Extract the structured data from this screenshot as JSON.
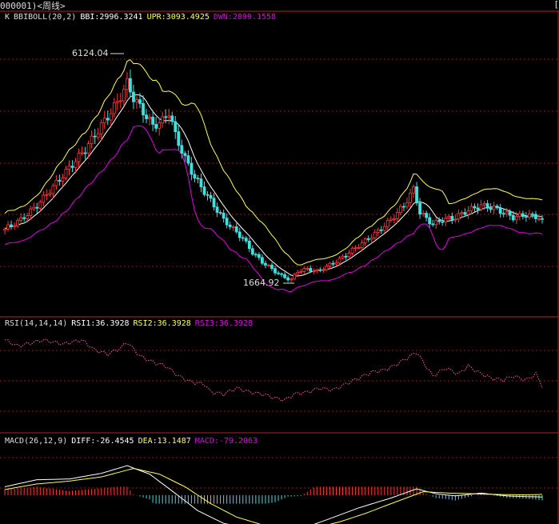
{
  "header": {
    "title": "000001)<周线>",
    "right_mark": "["
  },
  "colors": {
    "up": "#ff3a3a",
    "down": "#3fe0e0",
    "ma": "#ffffff",
    "upper": "#ffff55",
    "lower": "#e000e0",
    "rsi": "#ff55aa",
    "grid": "#8a1a1a",
    "border": "#b02020",
    "bar_up": "#ff3a3a",
    "bar_down": "#3fe0e0"
  },
  "main_panel": {
    "legend": {
      "k": "K",
      "indicator": "BBIBOLL(20,2)",
      "bbi": "BBI:2996.3241",
      "upr": "UPR:3093.4925",
      "dwn": "DWN:2899.1558"
    },
    "high_label": "6124.04",
    "low_label": "1664.92"
  },
  "rsi_panel": {
    "legend": {
      "name": "RSI(14,14,14)",
      "rsi1": "RSI1:36.3928",
      "rsi2": "RSI2:36.3928",
      "rsi3": "RSI3:36.3928"
    }
  },
  "macd_panel": {
    "legend": {
      "name": "MACD(26,12,9)",
      "diff": "DIFF:-26.4545",
      "dea": "DEA:13.1487",
      "macd": "MACD:-79.2063"
    }
  },
  "chart_data": [
    {
      "type": "candlestick",
      "indicator": "BBIBOLL(20,2)",
      "ylim": [
        1000,
        7200
      ],
      "anchors": [
        [
          0,
          2800
        ],
        [
          5,
          3000
        ],
        [
          10,
          3300
        ],
        [
          15,
          3700
        ],
        [
          20,
          4100
        ],
        [
          25,
          4500
        ],
        [
          30,
          5000
        ],
        [
          35,
          5500
        ],
        [
          38,
          5900
        ],
        [
          40,
          5600
        ],
        [
          43,
          5300
        ],
        [
          46,
          5000
        ],
        [
          49,
          5100
        ],
        [
          51,
          5300
        ],
        [
          53,
          4800
        ],
        [
          56,
          4300
        ],
        [
          59,
          3900
        ],
        [
          62,
          3600
        ],
        [
          65,
          3300
        ],
        [
          68,
          3000
        ],
        [
          71,
          2800
        ],
        [
          74,
          2600
        ],
        [
          77,
          2300
        ],
        [
          80,
          2100
        ],
        [
          83,
          1950
        ],
        [
          86,
          1800
        ],
        [
          89,
          1720
        ],
        [
          91,
          1900
        ],
        [
          94,
          1950
        ],
        [
          97,
          1900
        ],
        [
          100,
          2000
        ],
        [
          104,
          2150
        ],
        [
          108,
          2350
        ],
        [
          112,
          2550
        ],
        [
          116,
          2750
        ],
        [
          120,
          3000
        ],
        [
          124,
          3300
        ],
        [
          127,
          3650
        ],
        [
          129,
          3150
        ],
        [
          133,
          2900
        ],
        [
          136,
          3000
        ],
        [
          140,
          3050
        ],
        [
          144,
          3200
        ],
        [
          148,
          3300
        ],
        [
          152,
          3250
        ],
        [
          155,
          3150
        ],
        [
          158,
          3050
        ],
        [
          162,
          3100
        ],
        [
          166,
          3050
        ],
        [
          168,
          2880
        ]
      ],
      "n": 168,
      "high": 6124.04,
      "low": 1664.92,
      "bbi": 2996.3241,
      "upr": 3093.4925,
      "dwn": 2899.1558
    },
    {
      "type": "line",
      "indicator": "RSI(14,14,14)",
      "ylim": [
        0,
        100
      ],
      "anchors": [
        [
          0,
          88
        ],
        [
          4,
          82
        ],
        [
          8,
          85
        ],
        [
          12,
          88
        ],
        [
          18,
          84
        ],
        [
          24,
          88
        ],
        [
          28,
          78
        ],
        [
          32,
          74
        ],
        [
          36,
          80
        ],
        [
          38,
          86
        ],
        [
          42,
          72
        ],
        [
          46,
          66
        ],
        [
          50,
          62
        ],
        [
          54,
          52
        ],
        [
          58,
          46
        ],
        [
          62,
          44
        ],
        [
          64,
          36
        ],
        [
          68,
          34
        ],
        [
          72,
          40
        ],
        [
          76,
          36
        ],
        [
          80,
          34
        ],
        [
          84,
          30
        ],
        [
          87,
          28
        ],
        [
          90,
          34
        ],
        [
          94,
          36
        ],
        [
          98,
          40
        ],
        [
          102,
          38
        ],
        [
          106,
          44
        ],
        [
          110,
          50
        ],
        [
          114,
          56
        ],
        [
          118,
          58
        ],
        [
          122,
          64
        ],
        [
          126,
          72
        ],
        [
          128,
          76
        ],
        [
          130,
          66
        ],
        [
          133,
          52
        ],
        [
          137,
          60
        ],
        [
          141,
          54
        ],
        [
          144,
          62
        ],
        [
          147,
          56
        ],
        [
          151,
          50
        ],
        [
          155,
          48
        ],
        [
          158,
          52
        ],
        [
          162,
          48
        ],
        [
          165,
          54
        ],
        [
          168,
          36
        ]
      ],
      "rsi1": 36.3928,
      "rsi2": 36.3928,
      "rsi3": 36.3928
    },
    {
      "type": "line",
      "indicator": "MACD(26,12,9)",
      "ylim": [
        -500,
        500
      ],
      "diff_anchors": [
        [
          0,
          120
        ],
        [
          10,
          220
        ],
        [
          20,
          230
        ],
        [
          30,
          310
        ],
        [
          38,
          420
        ],
        [
          45,
          300
        ],
        [
          52,
          60
        ],
        [
          60,
          -220
        ],
        [
          68,
          -400
        ],
        [
          76,
          -470
        ],
        [
          84,
          -500
        ],
        [
          92,
          -480
        ],
        [
          100,
          -350
        ],
        [
          110,
          -180
        ],
        [
          120,
          -40
        ],
        [
          128,
          90
        ],
        [
          134,
          20
        ],
        [
          140,
          -10
        ],
        [
          148,
          30
        ],
        [
          156,
          -10
        ],
        [
          162,
          -20
        ],
        [
          168,
          -26.45
        ]
      ],
      "dea_anchors": [
        [
          0,
          80
        ],
        [
          10,
          160
        ],
        [
          20,
          200
        ],
        [
          30,
          260
        ],
        [
          40,
          380
        ],
        [
          48,
          300
        ],
        [
          56,
          120
        ],
        [
          64,
          -120
        ],
        [
          72,
          -310
        ],
        [
          80,
          -420
        ],
        [
          88,
          -480
        ],
        [
          96,
          -470
        ],
        [
          104,
          -380
        ],
        [
          112,
          -260
        ],
        [
          120,
          -120
        ],
        [
          130,
          50
        ],
        [
          138,
          30
        ],
        [
          146,
          20
        ],
        [
          154,
          10
        ],
        [
          162,
          5
        ],
        [
          168,
          13.15
        ]
      ],
      "diff": -26.4545,
      "dea": 13.1487,
      "macd": -79.2063
    }
  ]
}
